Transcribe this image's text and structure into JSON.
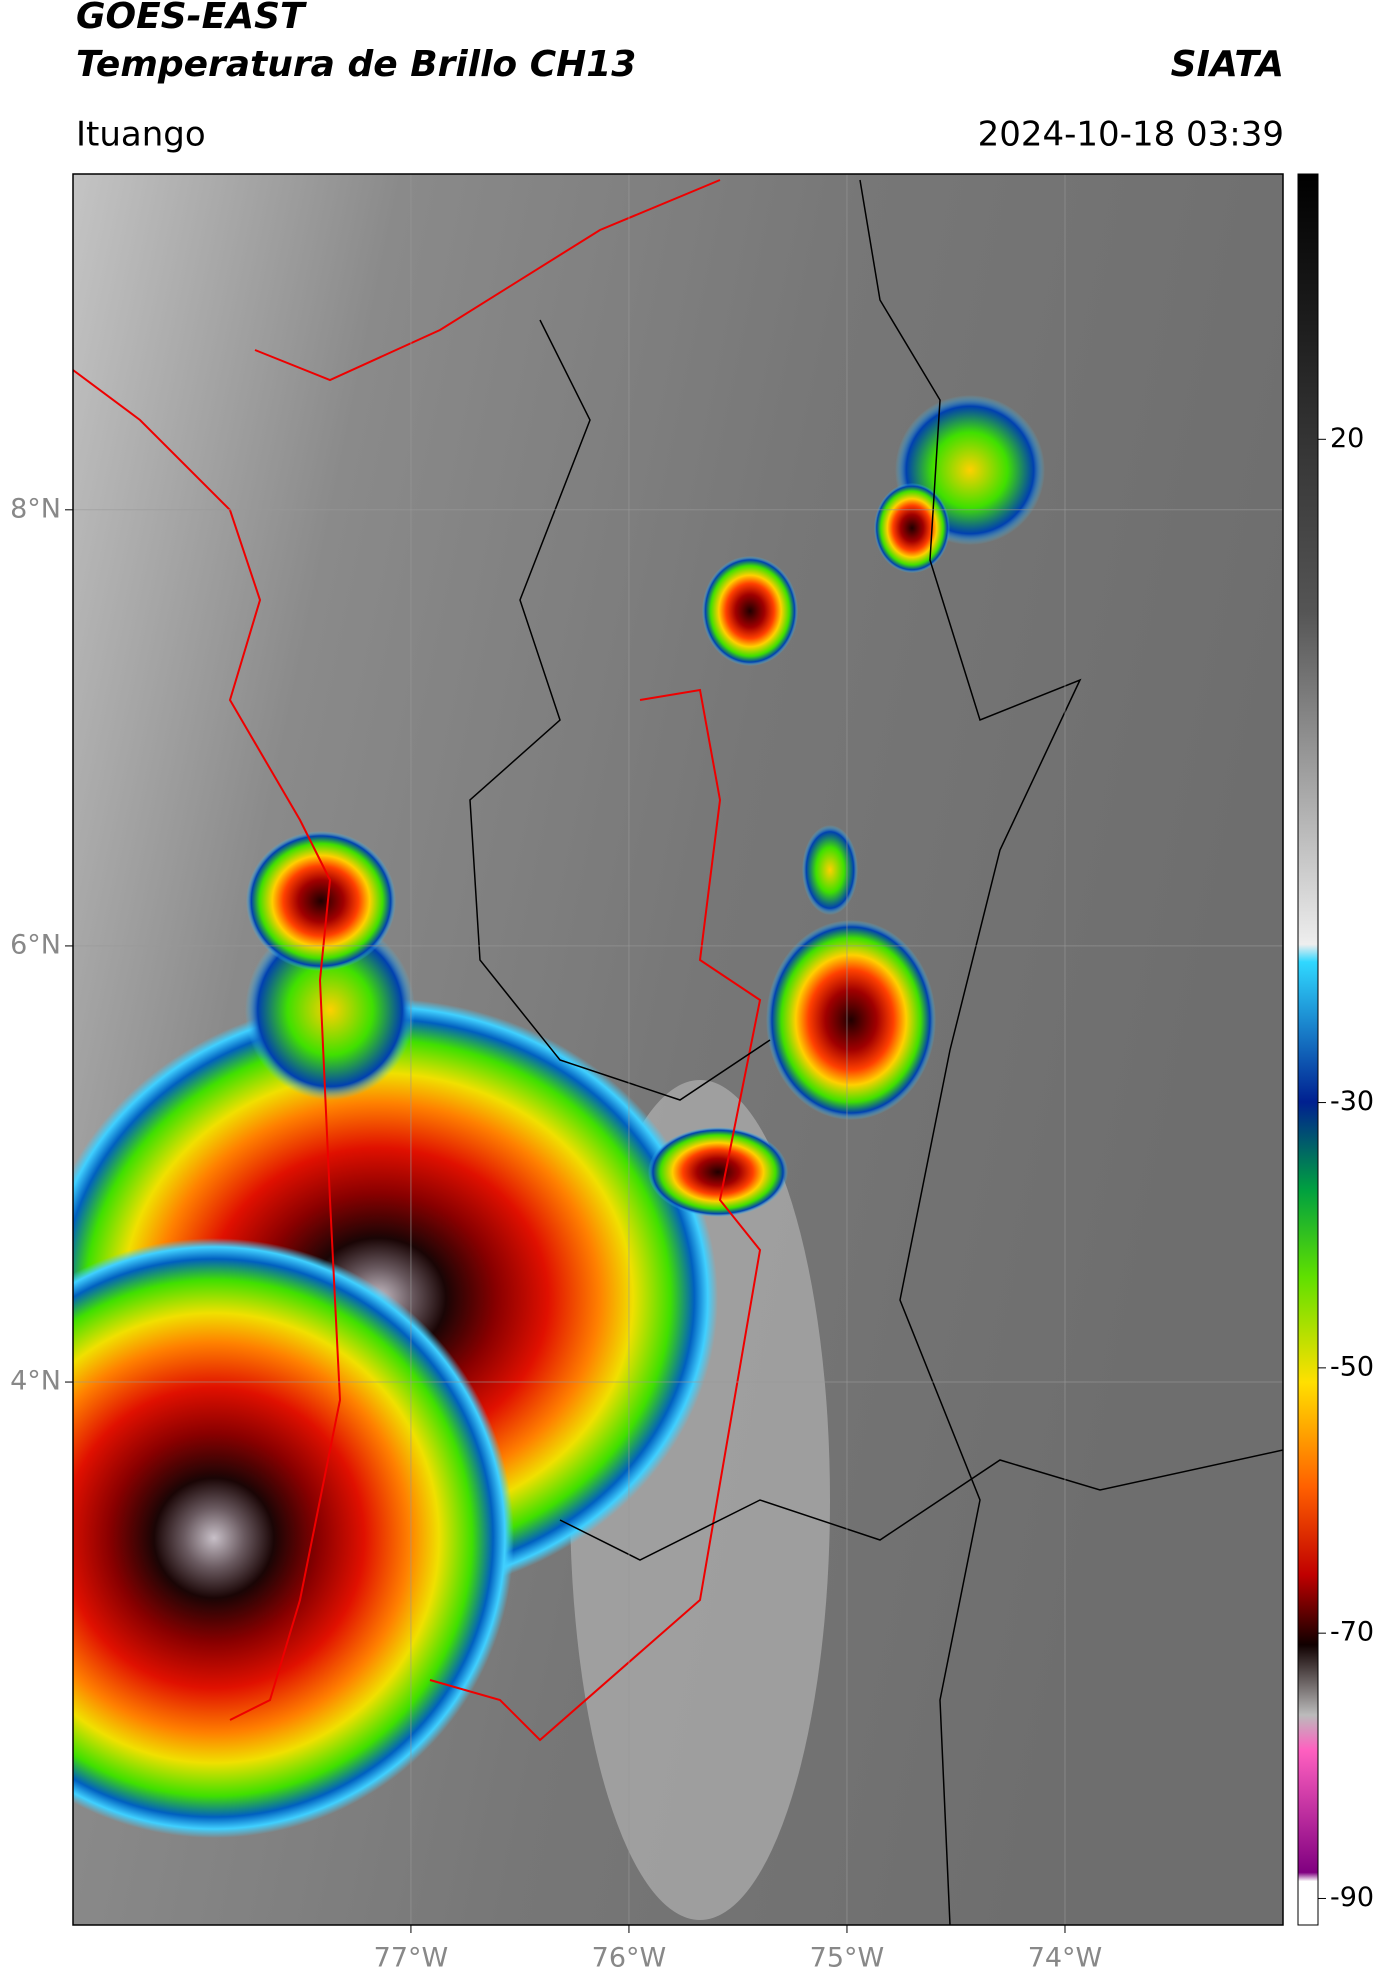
{
  "chart_data": {
    "type": "map",
    "title": "GOES-EAST",
    "subtitle": "Temperatura de Brillo CH13",
    "source": "SIATA",
    "location": "Ituango",
    "datetime": "2024-10-18 03:39",
    "xlim": [
      -78.55,
      -73.0
    ],
    "ylim": [
      1.51,
      9.54
    ],
    "xticks": [
      {
        "value": -77,
        "label": "77°W"
      },
      {
        "value": -76,
        "label": "76°W"
      },
      {
        "value": -75,
        "label": "75°W"
      },
      {
        "value": -74,
        "label": "74°W"
      }
    ],
    "yticks": [
      {
        "value": 8,
        "label": "8°N"
      },
      {
        "value": 6,
        "label": "6°N"
      },
      {
        "value": 4,
        "label": "4°N"
      }
    ],
    "clim": [
      -92,
      40
    ],
    "cticks": [
      20,
      -30,
      -50,
      -70,
      -90
    ],
    "grid": true
  }
}
